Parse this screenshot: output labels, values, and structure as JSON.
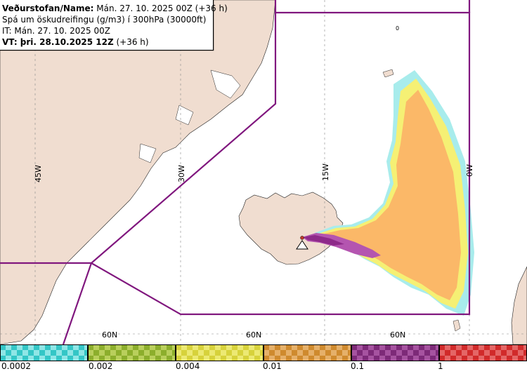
{
  "info": {
    "line1_label": "Veðurstofan/Name:",
    "line1_value": " Mán. 27. 10. 2025 00Z (+36 h)",
    "line2": "Spá um öskudreifingu (g/m3) í 300hPa (30000ft)",
    "line3": "IT: Mán. 27. 10. 2025 00Z",
    "line4_label": "VT: þri. 28.10.2025 12Z",
    "line4_value": " (+36 h)"
  },
  "map": {
    "longitudes": [
      "45W",
      "30W",
      "15W",
      "0W"
    ],
    "latitudes": [
      "60N",
      "60N",
      "60N"
    ],
    "small_label": "0"
  },
  "legend": {
    "labels": [
      "0.0002",
      "0.002",
      "0.004",
      "0.01",
      "0.1",
      "1"
    ],
    "bins": [
      {
        "color": "#34c6c6",
        "alt": "#8fe6e6"
      },
      {
        "color": "#8cae2c",
        "alt": "#b9cf5c"
      },
      {
        "color": "#d7d23b",
        "alt": "#ece973"
      },
      {
        "color": "#cf8a2e",
        "alt": "#e5b06a"
      },
      {
        "color": "#7d2a78",
        "alt": "#a653a0"
      },
      {
        "color": "#d12a2a",
        "alt": "#e46666"
      }
    ]
  },
  "colors": {
    "land": "#f0ddd0",
    "ocean": "#ffffff",
    "boundary": "#80177e",
    "plume_light": "#fbb868",
    "plume_yellow": "#f5f074",
    "plume_cyan": "#a8ecec",
    "plume_purple": "#b455b0"
  }
}
